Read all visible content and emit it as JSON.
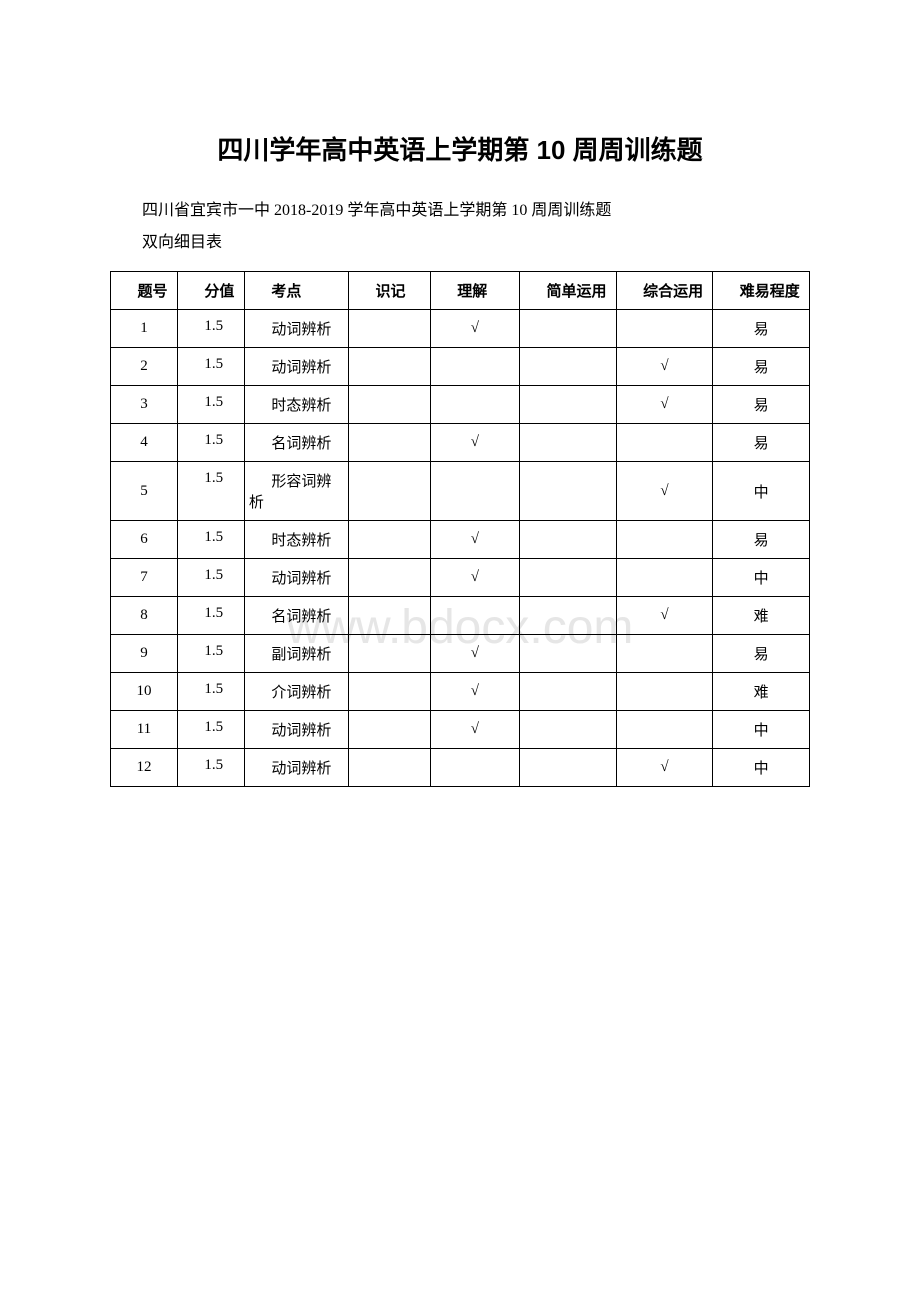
{
  "title": "四川学年高中英语上学期第 10 周周训练题",
  "subtitle": "四川省宜宾市一中 2018-2019 学年高中英语上学期第 10 周周训练题",
  "tableCaption": "双向细目表",
  "watermark": "www.bdocx.com",
  "headers": [
    "题号",
    "分值",
    "考点",
    "识记",
    "理解",
    "简单运用",
    "综合运用",
    "难易程度"
  ],
  "rows": [
    {
      "num": "1",
      "score": "1.5",
      "topic": "动词辨析",
      "c1": "",
      "c2": "√",
      "c3": "",
      "c4": "",
      "diff": "易"
    },
    {
      "num": "2",
      "score": "1.5",
      "topic": "动词辨析",
      "c1": "",
      "c2": "",
      "c3": "",
      "c4": "√",
      "diff": "易"
    },
    {
      "num": "3",
      "score": "1.5",
      "topic": "时态辨析",
      "c1": "",
      "c2": "",
      "c3": "",
      "c4": "√",
      "diff": "易"
    },
    {
      "num": "4",
      "score": "1.5",
      "topic": "名词辨析",
      "c1": "",
      "c2": "√",
      "c3": "",
      "c4": "",
      "diff": "易"
    },
    {
      "num": "5",
      "score": "1.5",
      "topic": "形容词辨析",
      "c1": "",
      "c2": "",
      "c3": "",
      "c4": "√",
      "diff": "中"
    },
    {
      "num": "6",
      "score": "1.5",
      "topic": "时态辨析",
      "c1": "",
      "c2": "√",
      "c3": "",
      "c4": "",
      "diff": "易"
    },
    {
      "num": "7",
      "score": "1.5",
      "topic": "动词辨析",
      "c1": "",
      "c2": "√",
      "c3": "",
      "c4": "",
      "diff": "中"
    },
    {
      "num": "8",
      "score": "1.5",
      "topic": "名词辨析",
      "c1": "",
      "c2": "",
      "c3": "",
      "c4": "√",
      "diff": "难"
    },
    {
      "num": "9",
      "score": "1.5",
      "topic": "副词辨析",
      "c1": "",
      "c2": "√",
      "c3": "",
      "c4": "",
      "diff": "易"
    },
    {
      "num": "10",
      "score": "1.5",
      "topic": "介词辨析",
      "c1": "",
      "c2": "√",
      "c3": "",
      "c4": "",
      "diff": "难"
    },
    {
      "num": "11",
      "score": "1.5",
      "topic": "动词辨析",
      "c1": "",
      "c2": "√",
      "c3": "",
      "c4": "",
      "diff": "中"
    },
    {
      "num": "12",
      "score": "1.5",
      "topic": "动词辨析",
      "c1": "",
      "c2": "",
      "c3": "",
      "c4": "√",
      "diff": "中"
    }
  ]
}
